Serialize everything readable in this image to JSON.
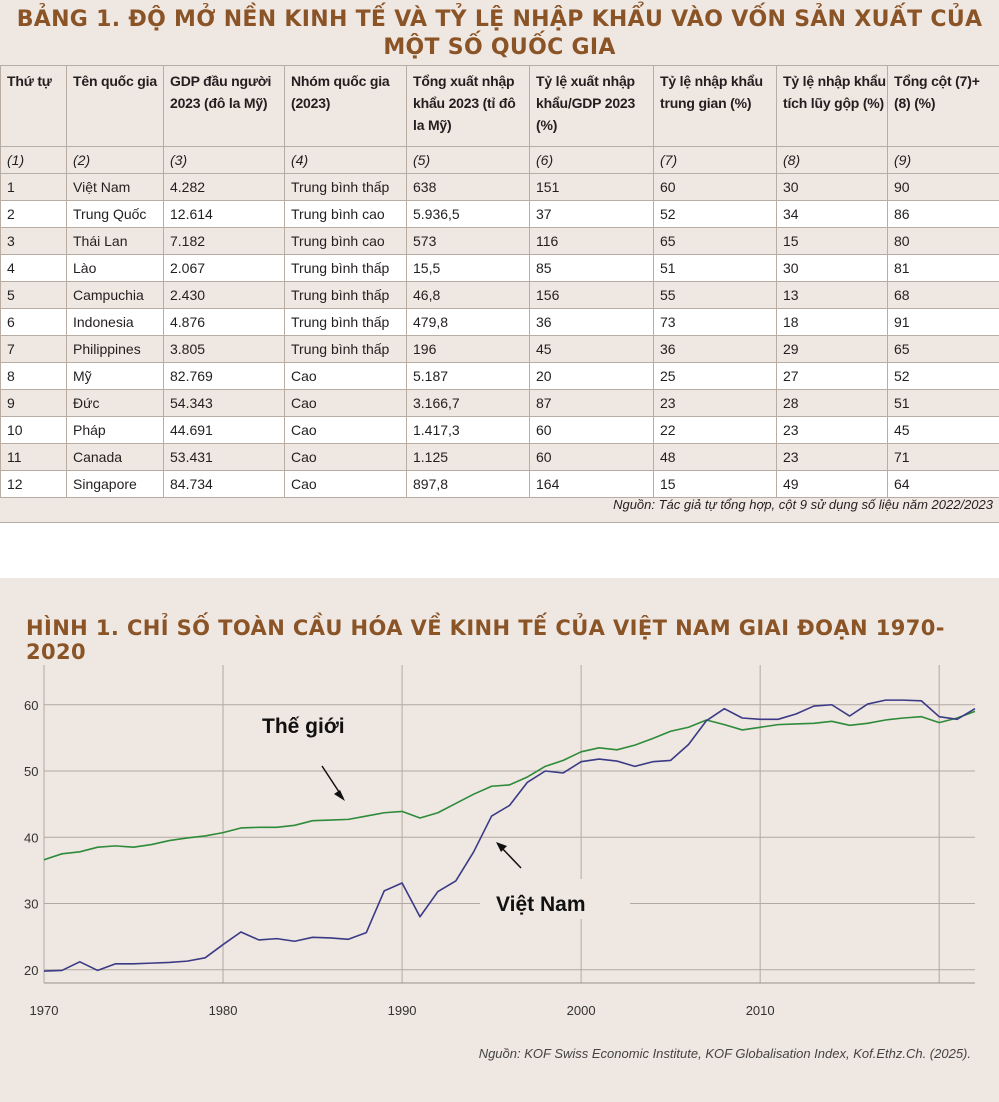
{
  "table": {
    "title_line1": "BẢNG 1.  ĐỘ MỞ NỀN KINH TẾ VÀ TỶ LỆ NHẬP KHẨU VÀO VỐN SẢN XUẤT CỦA",
    "title_line2": "MỘT SỐ QUỐC GIA",
    "headers": [
      "Thứ tự",
      "Tên quốc gia",
      "GDP đầu người 2023 (đô la Mỹ)",
      "Nhóm quốc gia (2023)",
      "Tổng xuất nhập khẩu 2023 (tỉ đô la Mỹ)",
      "Tỷ lệ xuất nhập khẩu/GDP 2023 (%)",
      "Tỷ lệ nhập khẩu trung gian (%)",
      "Tỷ lệ nhập khẩu tích lũy gộp (%)",
      "Tổng cột (7)+ (8) (%)"
    ],
    "column_numbers": [
      "(1)",
      "(2)",
      "(3)",
      "(4)",
      "(5)",
      "(6)",
      "(7)",
      "(8)",
      "(9)"
    ],
    "rows": [
      [
        "1",
        "Việt Nam",
        "4.282",
        "Trung bình thấp",
        "638",
        "151",
        "60",
        "30",
        "90"
      ],
      [
        "2",
        "Trung Quốc",
        "12.614",
        "Trung bình cao",
        "5.936,5",
        "37",
        "52",
        "34",
        "86"
      ],
      [
        "3",
        "Thái Lan",
        "7.182",
        "Trung bình cao",
        "573",
        "116",
        "65",
        "15",
        "80"
      ],
      [
        "4",
        "Lào",
        "2.067",
        "Trung bình thấp",
        "15,5",
        "85",
        "51",
        "30",
        "81"
      ],
      [
        "5",
        "Campuchia",
        "2.430",
        "Trung bình thấp",
        "46,8",
        "156",
        "55",
        "13",
        "68"
      ],
      [
        "6",
        "Indonesia",
        "4.876",
        "Trung bình thấp",
        "479,8",
        "36",
        "73",
        "18",
        "91"
      ],
      [
        "7",
        "Philippines",
        "3.805",
        "Trung bình thấp",
        "196",
        "45",
        "36",
        "29",
        "65"
      ],
      [
        "8",
        "Mỹ",
        "82.769",
        "Cao",
        "5.187",
        "20",
        "25",
        "27",
        "52"
      ],
      [
        "9",
        "Đức",
        "54.343",
        "Cao",
        "3.166,7",
        "87",
        "23",
        "28",
        "51"
      ],
      [
        "10",
        "Pháp",
        "44.691",
        "Cao",
        "1.417,3",
        "60",
        "22",
        "23",
        "45"
      ],
      [
        "11",
        "Canada",
        "53.431",
        "Cao",
        "1.125",
        "60",
        "48",
        "23",
        "71"
      ],
      [
        "12",
        "Singapore",
        "84.734",
        "Cao",
        "897,8",
        "164",
        "15",
        "49",
        "64"
      ]
    ],
    "source": "Nguồn: Tác giả tự tổng hợp, cột 9 sử dụng số liệu năm 2022/2023"
  },
  "figure": {
    "title": "HÌNH 1. CHỈ SỐ TOÀN CẦU HÓA VỀ KINH TẾ CỦA VIỆT NAM GIAI ĐOẠN 1970-2020",
    "source": "Nguồn: KOF Swiss Economic Institute, KOF Globalisation Index, Kof.Ethz.Ch. (2025).",
    "annotation_world": "Thế giới",
    "annotation_vietnam": "Việt Nam",
    "colors": {
      "world": "#2e8b3a",
      "vietnam": "#3b3a86",
      "title": "#8a5427",
      "grid": "#b2a9a3",
      "background": "#efe7e1"
    }
  },
  "chart_data": {
    "type": "line",
    "title": "HÌNH 1. CHỈ SỐ TOÀN CẦU HÓA VỀ KINH TẾ CỦA VIỆT NAM GIAI ĐOẠN 1970-2020",
    "xlabel": "",
    "ylabel": "",
    "xlim": [
      1970,
      2022
    ],
    "ylim": [
      18,
      66
    ],
    "xticks": [
      "1970",
      "1980",
      "1990",
      "2000",
      "2010"
    ],
    "yticks": [
      "20",
      "30",
      "40",
      "50",
      "60"
    ],
    "grid": "vertical lines every 10 years and at 2020, horizontal lines at y-ticks",
    "x": [
      1970,
      1971,
      1972,
      1973,
      1974,
      1975,
      1976,
      1977,
      1978,
      1979,
      1980,
      1981,
      1982,
      1983,
      1984,
      1985,
      1986,
      1987,
      1988,
      1989,
      1990,
      1991,
      1992,
      1993,
      1994,
      1995,
      1996,
      1997,
      1998,
      1999,
      2000,
      2001,
      2002,
      2003,
      2004,
      2005,
      2006,
      2007,
      2008,
      2009,
      2010,
      2011,
      2012,
      2013,
      2014,
      2015,
      2016,
      2017,
      2018,
      2019,
      2020,
      2021,
      2022
    ],
    "series": [
      {
        "name": "Thế giới",
        "values": [
          36.6,
          37.5,
          37.8,
          38.5,
          38.7,
          38.5,
          38.9,
          39.5,
          39.9,
          40.2,
          40.7,
          41.4,
          41.5,
          41.5,
          41.8,
          42.5,
          42.6,
          42.7,
          43.2,
          43.7,
          43.9,
          42.9,
          43.7,
          45.1,
          46.5,
          47.7,
          47.9,
          49.1,
          50.7,
          51.6,
          52.9,
          53.5,
          53.2,
          53.9,
          54.9,
          56.0,
          56.6,
          57.7,
          57.0,
          56.2,
          56.6,
          57.0,
          57.1,
          57.2,
          57.5,
          56.9,
          57.2,
          57.7,
          58.0,
          58.2,
          57.3,
          58.0,
          59.0
        ]
      },
      {
        "name": "Việt Nam",
        "values": [
          19.8,
          19.9,
          21.2,
          19.9,
          20.9,
          20.9,
          21.0,
          21.1,
          21.3,
          21.8,
          23.8,
          25.7,
          24.5,
          24.7,
          24.3,
          24.9,
          24.8,
          24.6,
          25.6,
          31.9,
          33.1,
          28.0,
          31.8,
          33.4,
          37.8,
          43.2,
          44.8,
          48.3,
          50.0,
          49.7,
          51.4,
          51.8,
          51.5,
          50.7,
          51.4,
          51.6,
          54.0,
          57.6,
          59.4,
          58.0,
          57.8,
          57.8,
          58.6,
          59.8,
          60.0,
          58.3,
          60.1,
          60.7,
          60.7,
          60.6,
          58.2,
          57.8,
          59.4
        ]
      }
    ]
  }
}
